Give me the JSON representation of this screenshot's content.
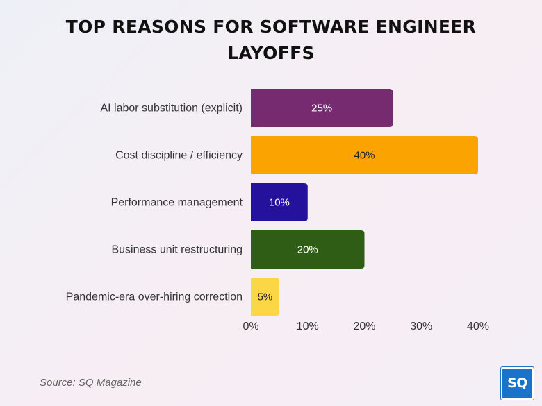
{
  "chart_data": {
    "type": "bar",
    "orientation": "horizontal",
    "title_lines": [
      "TOP REASONS FOR SOFTWARE ENGINEER",
      "LAYOFFS"
    ],
    "categories": [
      "AI labor substitution (explicit)",
      "Cost discipline / efficiency",
      "Performance management",
      "Business unit restructuring",
      "Pandemic-era over-hiring correction"
    ],
    "values": [
      25,
      40,
      10,
      20,
      5
    ],
    "data_labels": [
      "25%",
      "40%",
      "10%",
      "20%",
      "5%"
    ],
    "colors": [
      "#762a6f",
      "#fba300",
      "#24129c",
      "#2f5d16",
      "#fbd746"
    ],
    "label_colors": [
      "#ffffff",
      "#222222",
      "#ffffff",
      "#ffffff",
      "#222222"
    ],
    "xlim": [
      0,
      40
    ],
    "xticks": [
      0,
      10,
      20,
      30,
      40
    ],
    "xtick_labels": [
      "0%",
      "10%",
      "20%",
      "30%",
      "40%"
    ],
    "xlabel": "",
    "ylabel": "",
    "grid": false,
    "legend": "none"
  },
  "footer": {
    "source": "Source: SQ Magazine",
    "logo_text": "SQ"
  }
}
